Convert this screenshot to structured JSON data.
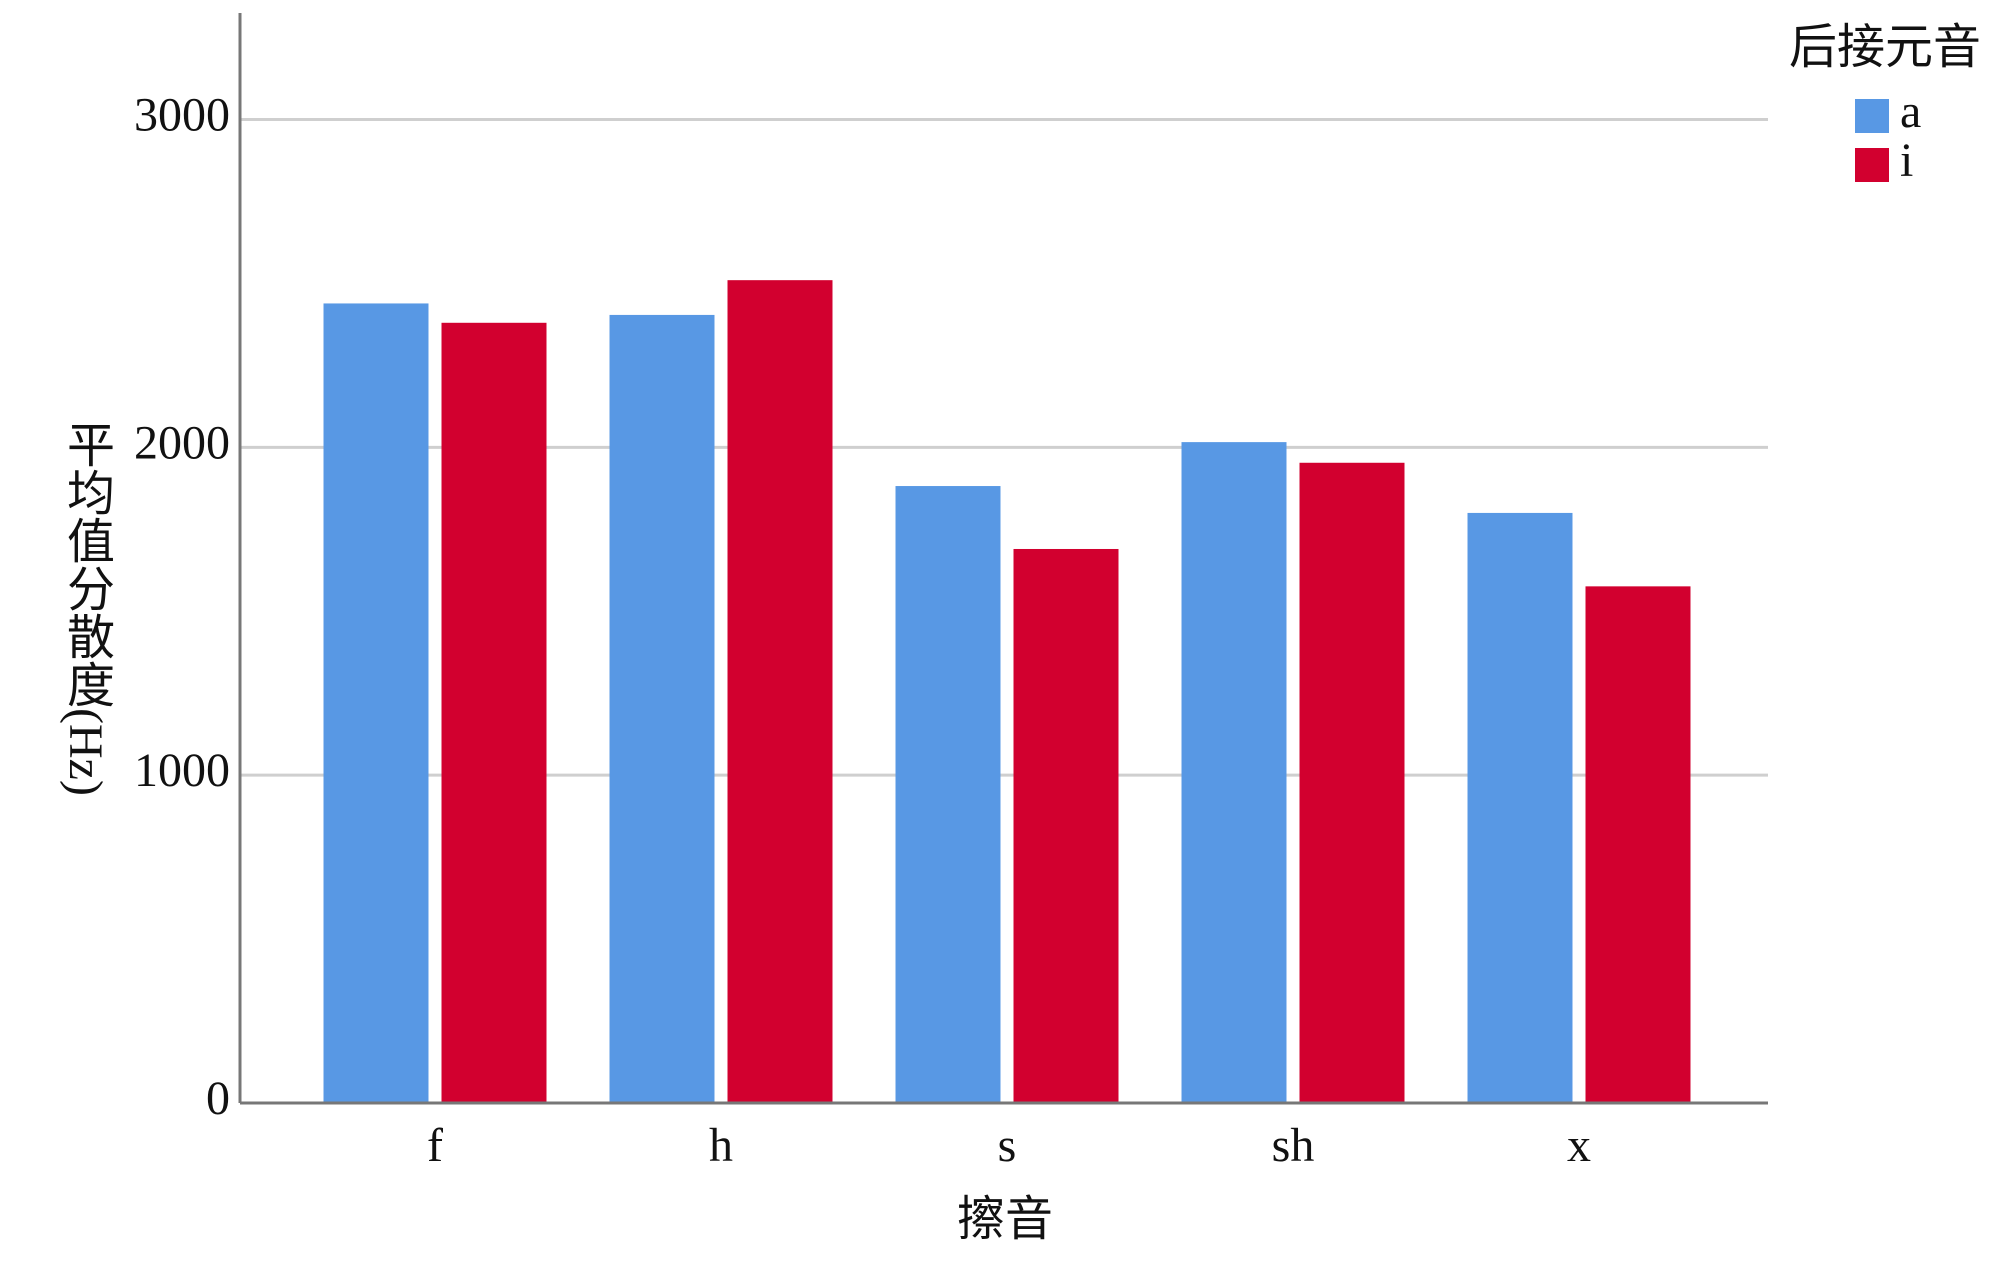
{
  "chart_data": {
    "type": "bar",
    "x_label": "擦音",
    "y_label": "平均值分散度(Hz)",
    "categories": [
      "f",
      "h",
      "s",
      "sh",
      "x"
    ],
    "legend_title": "后接元音",
    "series": [
      {
        "name": "a",
        "color": "#5898e4",
        "values": [
          2439,
          2404,
          1882,
          2016,
          1800
        ]
      },
      {
        "name": "i",
        "color": "#d2002f",
        "values": [
          2380,
          2510,
          1690,
          1953,
          1576
        ]
      }
    ],
    "ylim": [
      0,
      3325
    ],
    "yticks": [
      0,
      1000,
      2000,
      3000
    ],
    "grid": true,
    "legend_position": "top-right"
  }
}
